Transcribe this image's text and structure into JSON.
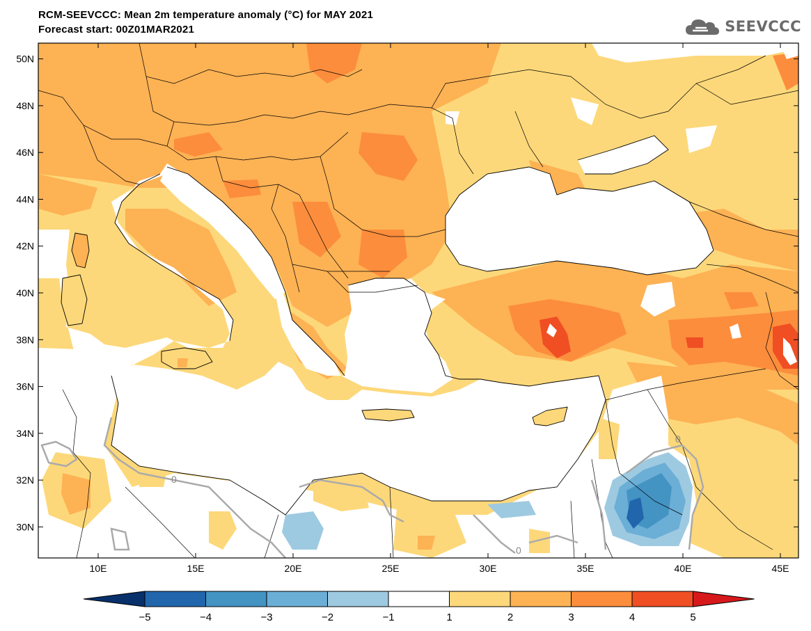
{
  "header": {
    "title": "RCM-SEEVCCC: Mean 2m temperature anomaly (°C) for MAY 2021",
    "subtitle": "Forecast start: 00Z01MAR2021"
  },
  "logo": {
    "text": "SEEVCCC",
    "icon": "cloud-logo-icon"
  },
  "map": {
    "lat_ticks": [
      "50N",
      "48N",
      "46N",
      "44N",
      "42N",
      "40N",
      "38N",
      "36N",
      "34N",
      "32N",
      "30N"
    ],
    "lon_ticks": [
      "10E",
      "15E",
      "20E",
      "25E",
      "30E",
      "35E",
      "40E",
      "45E"
    ],
    "lat_range": [
      29,
      51
    ],
    "lon_range": [
      7,
      46
    ],
    "contour_labels": [
      "0",
      "0",
      "0"
    ],
    "colors": {
      "below_m5": "#08306b",
      "m5_m4": "#2166ac",
      "m4_m3": "#4393c3",
      "m3_m2": "#6baed6",
      "m2_m1": "#9ecae1",
      "m1_1": "#ffffff",
      "1_2": "#fdd87a",
      "2_3": "#fdb254",
      "3_4": "#fc8d3c",
      "4_5": "#f04e23",
      "above_5": "#d7191c"
    }
  },
  "colorbar": {
    "labels": [
      "−5",
      "−4",
      "−3",
      "−2",
      "−1",
      "1",
      "2",
      "3",
      "4",
      "5"
    ],
    "colors": [
      "#08306b",
      "#2166ac",
      "#4393c3",
      "#6baed6",
      "#9ecae1",
      "#ffffff",
      "#fdd87a",
      "#fdb254",
      "#fc8d3c",
      "#f04e23",
      "#d7191c"
    ]
  }
}
